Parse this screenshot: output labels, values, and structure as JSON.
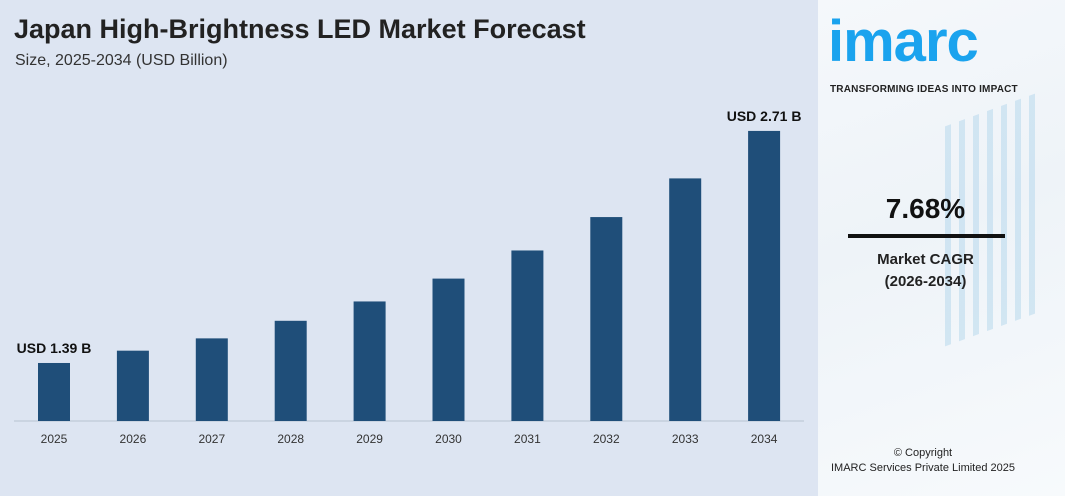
{
  "header": {
    "title": "Japan High-Brightness LED Market Forecast",
    "subtitle": "Size, 2025-2034 (USD Billion)"
  },
  "sidebar": {
    "logo": "imarc",
    "tagline": "TRANSFORMING IDEAS INTO IMPACT",
    "cagr_value": "7.68%",
    "cagr_label": "Market CAGR",
    "cagr_period": "(2026-2034)",
    "copyright": "© Copyright",
    "company": "IMARC Services Private Limited 2025"
  },
  "colors": {
    "bar": "#1f4e79",
    "background": "#dde5f2",
    "logo": "#1aa3ee"
  },
  "chart_data": {
    "type": "bar",
    "title": "Japan High-Brightness LED Market Forecast",
    "subtitle": "Size, 2025-2034 (USD Billion)",
    "categories": [
      "2025",
      "2026",
      "2027",
      "2028",
      "2029",
      "2030",
      "2031",
      "2032",
      "2033",
      "2034"
    ],
    "values": [
      1.39,
      1.46,
      1.53,
      1.63,
      1.74,
      1.87,
      2.03,
      2.22,
      2.44,
      2.71
    ],
    "data_labels": [
      {
        "category": "2025",
        "text": "USD 1.39 B"
      },
      {
        "category": "2034",
        "text": "USD 2.71 B"
      }
    ],
    "grid": false,
    "legend": "none"
  }
}
